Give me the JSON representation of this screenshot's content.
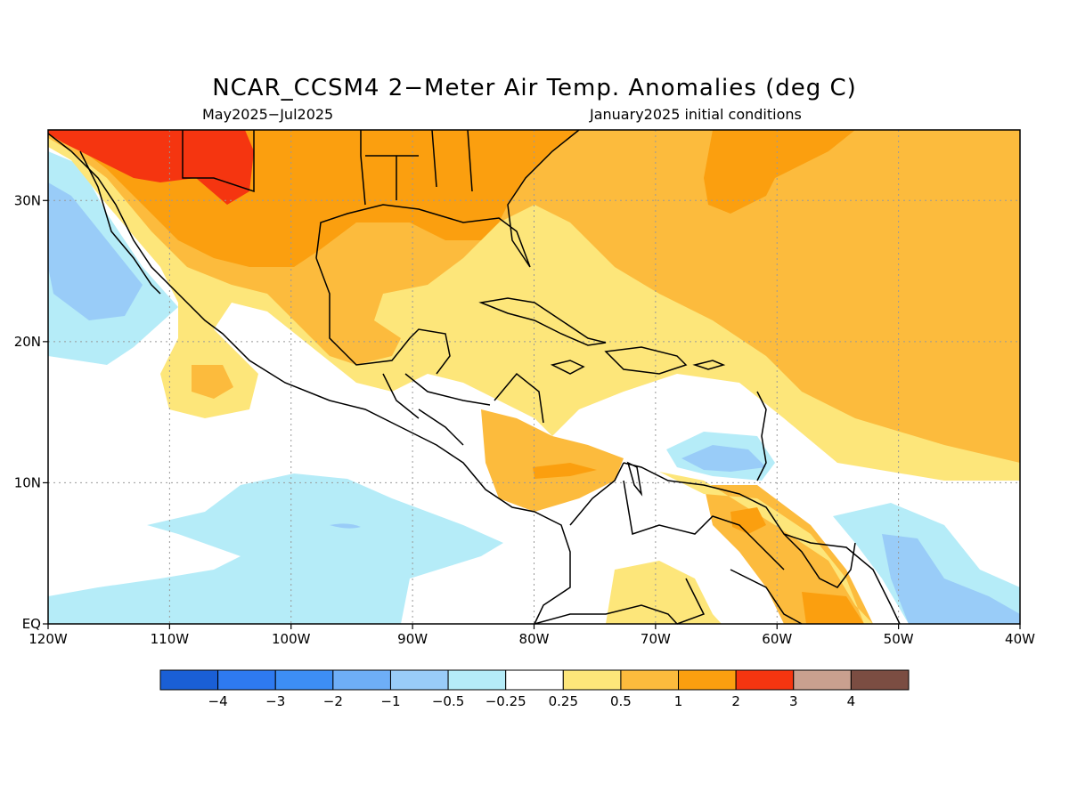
{
  "title": "NCAR_CCSM4 2−Meter Air Temp. Anomalies (deg C)",
  "subtitle_left": "May2025−Jul2025",
  "subtitle_right": "January2025 initial conditions",
  "map": {
    "lon_range": [
      -120,
      -40
    ],
    "lat_range": [
      0,
      35
    ],
    "lon_ticks": [
      {
        "value": -120,
        "label": "120W"
      },
      {
        "value": -110,
        "label": "110W"
      },
      {
        "value": -100,
        "label": "100W"
      },
      {
        "value": -90,
        "label": "90W"
      },
      {
        "value": -80,
        "label": "80W"
      },
      {
        "value": -70,
        "label": "70W"
      },
      {
        "value": -60,
        "label": "60W"
      },
      {
        "value": -50,
        "label": "50W"
      },
      {
        "value": -40,
        "label": "40W"
      }
    ],
    "lat_ticks": [
      {
        "value": 0,
        "label": "EQ"
      },
      {
        "value": 10,
        "label": "10N"
      },
      {
        "value": 20,
        "label": "20N"
      },
      {
        "value": 30,
        "label": "30N"
      }
    ],
    "grid": "dotted"
  },
  "colorbar": {
    "colors": [
      "#1a5fd6",
      "#2e7af0",
      "#3d8ef5",
      "#6eaef7",
      "#99ccf8",
      "#b5ecf8",
      "#ffffff",
      "#fde67a",
      "#fcbb3d",
      "#fb9f0f",
      "#f53510",
      "#c9a08f",
      "#7b4d42"
    ],
    "labels": [
      "−4",
      "−3",
      "−2",
      "−1",
      "−0.5",
      "−0.25",
      "0.25",
      "0.5",
      "1",
      "2",
      "3",
      "4"
    ]
  }
}
